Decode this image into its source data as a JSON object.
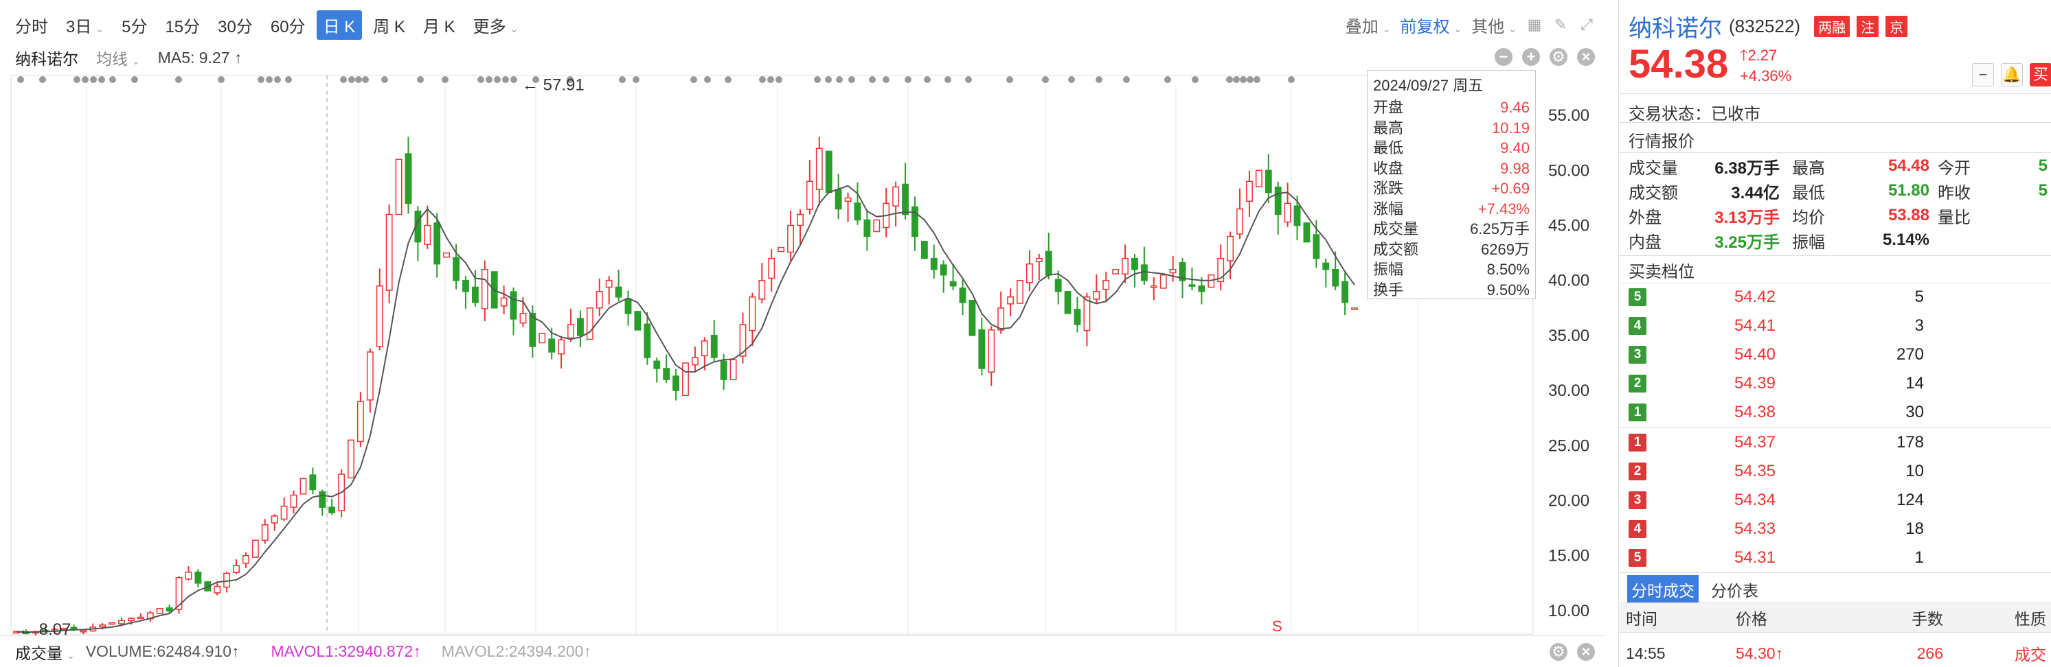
{
  "toolbar": {
    "periods": [
      {
        "label": "分时",
        "active": false
      },
      {
        "label": "3日",
        "active": false,
        "caret": true
      },
      {
        "label": "5分",
        "active": false
      },
      {
        "label": "15分",
        "active": false
      },
      {
        "label": "30分",
        "active": false
      },
      {
        "label": "60分",
        "active": false
      },
      {
        "label": "日 K",
        "active": true
      },
      {
        "label": "周 K",
        "active": false
      },
      {
        "label": "月 K",
        "active": false
      },
      {
        "label": "更多",
        "active": false,
        "caret": true
      }
    ],
    "overlay_label": "叠加",
    "adjust_label": "前复权",
    "other_label": "其他"
  },
  "chart_header": {
    "stock_name": "纳科诺尔",
    "ma_type": "均线",
    "ma5_label": "MA5: 9.27 ↑"
  },
  "chart_data": {
    "type": "candlestick",
    "price_axis_ticks": [
      "55.00",
      "50.00",
      "45.00",
      "40.00",
      "35.00",
      "30.00",
      "25.00",
      "20.00",
      "15.00",
      "10.00"
    ],
    "ylim": [
      8,
      58
    ],
    "annotations": {
      "high": "57.91",
      "low": "8.07",
      "signal": "S"
    },
    "ma_line": "MA5",
    "tooltip": {
      "date": "2024/09/27 周五",
      "rows": [
        {
          "k": "开盘",
          "v": "9.46"
        },
        {
          "k": "最高",
          "v": "10.19"
        },
        {
          "k": "最低",
          "v": "9.40"
        },
        {
          "k": "收盘",
          "v": "9.98"
        },
        {
          "k": "涨跌",
          "v": "+0.69"
        },
        {
          "k": "涨幅",
          "v": "+7.43%"
        },
        {
          "k": "成交量",
          "v": "6.25万手"
        },
        {
          "k": "成交额",
          "v": "6269万"
        },
        {
          "k": "振幅",
          "v": "8.50%"
        },
        {
          "k": "换手",
          "v": "9.50%"
        }
      ]
    },
    "approx_closes": [
      8.1,
      8.0,
      8.1,
      8.2,
      8.3,
      8.4,
      8.3,
      8.2,
      8.5,
      8.7,
      8.9,
      9.1,
      9.3,
      9.4,
      9.8,
      10.2,
      9.98,
      13.0,
      13.5,
      12.5,
      11.8,
      12.2,
      13.4,
      14.1,
      15.0,
      16.4,
      17.8,
      18.6,
      19.5,
      20.5,
      22.0,
      21.0,
      19.4,
      18.9,
      22.4,
      25.5,
      29.0,
      33.5,
      39.5,
      46.0,
      51.0,
      47.0,
      43.5,
      45.0,
      41.5,
      42.5,
      40.0,
      39.0,
      38.0,
      41.0,
      37.5,
      38.4,
      36.5,
      37.0,
      34.0,
      35.2,
      33.5,
      34.6,
      36.0,
      35.0,
      37.5,
      39.0,
      40.0,
      38.5,
      37.0,
      35.5,
      33.0,
      32.0,
      31.0,
      30.0,
      32.5,
      33.0,
      34.5,
      33.0,
      31.0,
      32.8,
      36.0,
      38.5,
      40.0,
      42.0,
      43.0,
      45.0,
      46.0,
      49.0,
      52.0,
      48.0,
      46.5,
      47.5,
      45.5,
      44.0,
      45.5,
      47.0,
      48.5,
      46.0,
      44.0,
      42.0,
      41.0,
      40.5,
      39.5,
      38.0,
      35.0,
      32.0,
      35.5,
      37.5,
      38.5,
      40.0,
      41.5,
      42.0,
      40.5,
      39.0,
      37.0,
      36.0,
      38.5,
      39.0,
      40.0,
      41.0,
      42.0,
      41.0,
      40.0,
      39.5,
      40.5,
      41.0,
      40.0,
      39.5,
      39.0,
      40.5,
      42.0,
      44.0,
      46.5,
      49.0,
      50.0,
      48.0,
      46.0,
      47.0,
      45.0,
      43.5,
      42.0,
      41.0,
      39.5,
      38.0,
      37.5
    ]
  },
  "volume": {
    "label": "成交量",
    "volume_text": "VOLUME:62484.910↑",
    "mavol1_text": "MAVOL1:32940.872↑",
    "mavol2_text": "MAVOL2:24394.200↑"
  },
  "panel": {
    "stock_name": "纳科诺尔",
    "stock_code": "(832522)",
    "tags": [
      {
        "label": "两融",
        "color": "#e33"
      },
      {
        "label": "注",
        "color": "#e33"
      },
      {
        "label": "京",
        "color": "#e33"
      }
    ],
    "price": "54.38",
    "change": "2.27",
    "change_pct": "+4.36%",
    "buy_label": "买",
    "trade_status": "交易状态：已收市",
    "quote_title": "行情报价",
    "stats": [
      {
        "k": "成交量",
        "v": "6.38万手",
        "vc": "dark",
        "k2": "最高",
        "v2": "54.48",
        "v2c": "red",
        "k3": "今开",
        "v3": "5"
      },
      {
        "k": "成交额",
        "v": "3.44亿",
        "vc": "dark",
        "k2": "最低",
        "v2": "51.80",
        "v2c": "green",
        "k3": "昨收",
        "v3": "5"
      },
      {
        "k": "外盘",
        "v": "3.13万手",
        "vc": "red",
        "k2": "均价",
        "v2": "53.88",
        "v2c": "red",
        "k3": "量比",
        "v3": ""
      },
      {
        "k": "内盘",
        "v": "3.25万手",
        "vc": "green",
        "k2": "振幅",
        "v2": "5.14%",
        "v2c": "dark",
        "k3": "",
        "v3": ""
      }
    ],
    "orderbook_title": "买卖档位",
    "asks": [
      {
        "level": "5",
        "price": "54.42",
        "vol": "5"
      },
      {
        "level": "4",
        "price": "54.41",
        "vol": "3"
      },
      {
        "level": "3",
        "price": "54.40",
        "vol": "270"
      },
      {
        "level": "2",
        "price": "54.39",
        "vol": "14"
      },
      {
        "level": "1",
        "price": "54.38",
        "vol": "30"
      }
    ],
    "bids": [
      {
        "level": "1",
        "price": "54.37",
        "vol": "178"
      },
      {
        "level": "2",
        "price": "54.35",
        "vol": "10"
      },
      {
        "level": "3",
        "price": "54.34",
        "vol": "124"
      },
      {
        "level": "4",
        "price": "54.33",
        "vol": "18"
      },
      {
        "level": "5",
        "price": "54.31",
        "vol": "1"
      }
    ],
    "tabs": [
      {
        "label": "分时成交",
        "active": true
      },
      {
        "label": "分价表",
        "active": false
      }
    ],
    "ticks_headers": [
      "时间",
      "价格",
      "手数",
      "性质"
    ],
    "tick": {
      "time": "14:55",
      "price": "54.30↑",
      "vol": "266",
      "nature": "成交"
    }
  },
  "colors": {
    "up": "#e33",
    "down": "#2a9d2a",
    "accent": "#3d7ddd",
    "ma": "#555555",
    "ask_badge": "#3a9a3a",
    "bid_badge": "#d83a3a"
  }
}
